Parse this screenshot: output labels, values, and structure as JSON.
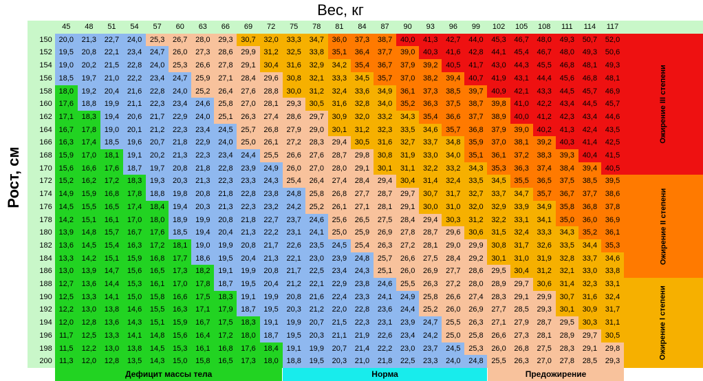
{
  "title": "Вес, кг",
  "ylabel": "Рост, см",
  "colors": {
    "header_bg": "#c9f7c9",
    "deficit": "#22d322",
    "normal": "#8fb8ef",
    "pre_obesity": "#f8c29c",
    "obesity_1": "#f6b000",
    "obesity_2": "#ff7a00",
    "obesity_3": "#ee1111",
    "footer_normal": "#18ecec"
  },
  "legend": {
    "deficit": "Дефицит массы тела",
    "normal": "Норма",
    "pre_obesity": "Предожирение",
    "obesity_1": "Ожирение I степени",
    "obesity_2": "Ожирение II степени",
    "obesity_3": "Ожирение III степени"
  },
  "chart_data": {
    "type": "heatmap",
    "title": "Вес, кг",
    "xlabel": "Вес, кг",
    "ylabel": "Рост, см",
    "x": [
      45,
      48,
      51,
      54,
      57,
      60,
      63,
      66,
      69,
      72,
      75,
      78,
      81,
      84,
      87,
      90,
      93,
      96,
      99,
      102,
      105,
      108,
      111,
      114,
      117
    ],
    "y": [
      150,
      152,
      154,
      156,
      158,
      160,
      162,
      164,
      166,
      168,
      170,
      172,
      174,
      176,
      178,
      180,
      182,
      184,
      186,
      188,
      190,
      192,
      194,
      196,
      198,
      200
    ],
    "values": [
      [
        "20,0",
        "21,3",
        "22,7",
        "24,0",
        "25,3",
        "26,7",
        "28,0",
        "29,3",
        "30,7",
        "32,0",
        "33,3",
        "34,7",
        "36,0",
        "37,3",
        "38,7",
        "40,0",
        "41,3",
        "42,7",
        "44,0",
        "45,3",
        "46,7",
        "48,0",
        "49,3",
        "50,7",
        "52,0"
      ],
      [
        "19,5",
        "20,8",
        "22,1",
        "23,4",
        "24,7",
        "26,0",
        "27,3",
        "28,6",
        "29,9",
        "31,2",
        "32,5",
        "33,8",
        "35,1",
        "36,4",
        "37,7",
        "39,0",
        "40,3",
        "41,6",
        "42,8",
        "44,1",
        "45,4",
        "46,7",
        "48,0",
        "49,3",
        "50,6"
      ],
      [
        "19,0",
        "20,2",
        "21,5",
        "22,8",
        "24,0",
        "25,3",
        "26,6",
        "27,8",
        "29,1",
        "30,4",
        "31,6",
        "32,9",
        "34,2",
        "35,4",
        "36,7",
        "37,9",
        "39,2",
        "40,5",
        "41,7",
        "43,0",
        "44,3",
        "45,5",
        "46,8",
        "48,1",
        "49,3"
      ],
      [
        "18,5",
        "19,7",
        "21,0",
        "22,2",
        "23,4",
        "24,7",
        "25,9",
        "27,1",
        "28,4",
        "29,6",
        "30,8",
        "32,1",
        "33,3",
        "34,5",
        "35,7",
        "37,0",
        "38,2",
        "39,4",
        "40,7",
        "41,9",
        "43,1",
        "44,4",
        "45,6",
        "46,8",
        "48,1"
      ],
      [
        "18,0",
        "19,2",
        "20,4",
        "21,6",
        "22,8",
        "24,0",
        "25,2",
        "26,4",
        "27,6",
        "28,8",
        "30,0",
        "31,2",
        "32,4",
        "33,6",
        "34,9",
        "36,1",
        "37,3",
        "38,5",
        "39,7",
        "40,9",
        "42,1",
        "43,3",
        "44,5",
        "45,7",
        "46,9"
      ],
      [
        "17,6",
        "18,8",
        "19,9",
        "21,1",
        "22,3",
        "23,4",
        "24,6",
        "25,8",
        "27,0",
        "28,1",
        "29,3",
        "30,5",
        "31,6",
        "32,8",
        "34,0",
        "35,2",
        "36,3",
        "37,5",
        "38,7",
        "39,8",
        "41,0",
        "42,2",
        "43,4",
        "44,5",
        "45,7"
      ],
      [
        "17,1",
        "18,3",
        "19,4",
        "20,6",
        "21,7",
        "22,9",
        "24,0",
        "25,1",
        "26,3",
        "27,4",
        "28,6",
        "29,7",
        "30,9",
        "32,0",
        "33,2",
        "34,3",
        "35,4",
        "36,6",
        "37,7",
        "38,9",
        "40,0",
        "41,2",
        "42,3",
        "43,4",
        "44,6"
      ],
      [
        "16,7",
        "17,8",
        "19,0",
        "20,1",
        "21,2",
        "22,3",
        "23,4",
        "24,5",
        "25,7",
        "26,8",
        "27,9",
        "29,0",
        "30,1",
        "31,2",
        "32,3",
        "33,5",
        "34,6",
        "35,7",
        "36,8",
        "37,9",
        "39,0",
        "40,2",
        "41,3",
        "42,4",
        "43,5"
      ],
      [
        "16,3",
        "17,4",
        "18,5",
        "19,6",
        "20,7",
        "21,8",
        "22,9",
        "24,0",
        "25,0",
        "26,1",
        "27,2",
        "28,3",
        "29,4",
        "30,5",
        "31,6",
        "32,7",
        "33,7",
        "34,8",
        "35,9",
        "37,0",
        "38,1",
        "39,2",
        "40,3",
        "41,4",
        "42,5"
      ],
      [
        "15,9",
        "17,0",
        "18,1",
        "19,1",
        "20,2",
        "21,3",
        "22,3",
        "23,4",
        "24,4",
        "25,5",
        "26,6",
        "27,6",
        "28,7",
        "29,8",
        "30,8",
        "31,9",
        "33,0",
        "34,0",
        "35,1",
        "36,1",
        "37,2",
        "38,3",
        "39,3",
        "40,4",
        "41,5"
      ],
      [
        "15,6",
        "16,6",
        "17,6",
        "18,7",
        "19,7",
        "20,8",
        "21,8",
        "22,8",
        "23,9",
        "24,9",
        "26,0",
        "27,0",
        "28,0",
        "29,1",
        "30,1",
        "31,1",
        "32,2",
        "33,2",
        "34,3",
        "35,3",
        "36,3",
        "37,4",
        "38,4",
        "39,4",
        "40,5"
      ],
      [
        "15,2",
        "16,2",
        "17,2",
        "18,3",
        "19,3",
        "20,3",
        "21,3",
        "22,3",
        "23,3",
        "24,3",
        "25,4",
        "26,4",
        "27,4",
        "28,4",
        "29,4",
        "30,4",
        "31,4",
        "32,4",
        "33,5",
        "34,5",
        "35,5",
        "36,5",
        "37,5",
        "38,5",
        "39,5"
      ],
      [
        "14,9",
        "15,9",
        "16,8",
        "17,8",
        "18,8",
        "19,8",
        "20,8",
        "21,8",
        "22,8",
        "23,8",
        "24,8",
        "25,8",
        "26,8",
        "27,7",
        "28,7",
        "29,7",
        "30,7",
        "31,7",
        "32,7",
        "33,7",
        "34,7",
        "35,7",
        "36,7",
        "37,7",
        "38,6"
      ],
      [
        "14,5",
        "15,5",
        "16,5",
        "17,4",
        "18,4",
        "19,4",
        "20,3",
        "21,3",
        "22,3",
        "23,2",
        "24,2",
        "25,2",
        "26,1",
        "27,1",
        "28,1",
        "29,1",
        "30,0",
        "31,0",
        "32,0",
        "32,9",
        "33,9",
        "34,9",
        "35,8",
        "36,8",
        "37,8"
      ],
      [
        "14,2",
        "15,1",
        "16,1",
        "17,0",
        "18,0",
        "18,9",
        "19,9",
        "20,8",
        "21,8",
        "22,7",
        "23,7",
        "24,6",
        "25,6",
        "26,5",
        "27,5",
        "28,4",
        "29,4",
        "30,3",
        "31,2",
        "32,2",
        "33,1",
        "34,1",
        "35,0",
        "36,0",
        "36,9"
      ],
      [
        "13,9",
        "14,8",
        "15,7",
        "16,7",
        "17,6",
        "18,5",
        "19,4",
        "20,4",
        "21,3",
        "22,2",
        "23,1",
        "24,1",
        "25,0",
        "25,9",
        "26,9",
        "27,8",
        "28,7",
        "29,6",
        "30,6",
        "31,5",
        "32,4",
        "33,3",
        "34,3",
        "35,2",
        "36,1"
      ],
      [
        "13,6",
        "14,5",
        "15,4",
        "16,3",
        "17,2",
        "18,1",
        "19,0",
        "19,9",
        "20,8",
        "21,7",
        "22,6",
        "23,5",
        "24,5",
        "25,4",
        "26,3",
        "27,2",
        "28,1",
        "29,0",
        "29,9",
        "30,8",
        "31,7",
        "32,6",
        "33,5",
        "34,4",
        "35,3"
      ],
      [
        "13,3",
        "14,2",
        "15,1",
        "15,9",
        "16,8",
        "17,7",
        "18,6",
        "19,5",
        "20,4",
        "21,3",
        "22,1",
        "23,0",
        "23,9",
        "24,8",
        "25,7",
        "26,6",
        "27,5",
        "28,4",
        "29,2",
        "30,1",
        "31,0",
        "31,9",
        "32,8",
        "33,7",
        "34,6"
      ],
      [
        "13,0",
        "13,9",
        "14,7",
        "15,6",
        "16,5",
        "17,3",
        "18,2",
        "19,1",
        "19,9",
        "20,8",
        "21,7",
        "22,5",
        "23,4",
        "24,3",
        "25,1",
        "26,0",
        "26,9",
        "27,7",
        "28,6",
        "29,5",
        "30,4",
        "31,2",
        "32,1",
        "33,0",
        "33,8"
      ],
      [
        "12,7",
        "13,6",
        "14,4",
        "15,3",
        "16,1",
        "17,0",
        "17,8",
        "18,7",
        "19,5",
        "20,4",
        "21,2",
        "22,1",
        "22,9",
        "23,8",
        "24,6",
        "25,5",
        "26,3",
        "27,2",
        "28,0",
        "28,9",
        "29,7",
        "30,6",
        "31,4",
        "32,3",
        "33,1"
      ],
      [
        "12,5",
        "13,3",
        "14,1",
        "15,0",
        "15,8",
        "16,6",
        "17,5",
        "18,3",
        "19,1",
        "19,9",
        "20,8",
        "21,6",
        "22,4",
        "23,3",
        "24,1",
        "24,9",
        "25,8",
        "26,6",
        "27,4",
        "28,3",
        "29,1",
        "29,9",
        "30,7",
        "31,6",
        "32,4"
      ],
      [
        "12,2",
        "13,0",
        "13,8",
        "14,6",
        "15,5",
        "16,3",
        "17,1",
        "17,9",
        "18,7",
        "19,5",
        "20,3",
        "21,2",
        "22,0",
        "22,8",
        "23,6",
        "24,4",
        "25,2",
        "26,0",
        "26,9",
        "27,7",
        "28,5",
        "29,3",
        "30,1",
        "30,9",
        "31,7"
      ],
      [
        "12,0",
        "12,8",
        "13,6",
        "14,3",
        "15,1",
        "15,9",
        "16,7",
        "17,5",
        "18,3",
        "19,1",
        "19,9",
        "20,7",
        "21,5",
        "22,3",
        "23,1",
        "23,9",
        "24,7",
        "25,5",
        "26,3",
        "27,1",
        "27,9",
        "28,7",
        "29,5",
        "30,3",
        "31,1"
      ],
      [
        "11,7",
        "12,5",
        "13,3",
        "14,1",
        "14,8",
        "15,6",
        "16,4",
        "17,2",
        "18,0",
        "18,7",
        "19,5",
        "20,3",
        "21,1",
        "21,9",
        "22,6",
        "23,4",
        "24,2",
        "25,0",
        "25,8",
        "26,6",
        "27,3",
        "28,1",
        "28,9",
        "29,7",
        "30,5"
      ],
      [
        "11,5",
        "12,2",
        "13,0",
        "13,8",
        "14,5",
        "15,3",
        "16,1",
        "16,8",
        "17,6",
        "18,4",
        "19,1",
        "19,9",
        "20,7",
        "21,4",
        "22,2",
        "23,0",
        "23,7",
        "24,5",
        "25,3",
        "26,0",
        "26,8",
        "27,5",
        "28,3",
        "29,1",
        "29,8"
      ],
      [
        "11,3",
        "12,0",
        "12,8",
        "13,5",
        "14,3",
        "15,0",
        "15,8",
        "16,5",
        "17,3",
        "18,0",
        "18,8",
        "19,5",
        "20,3",
        "21,0",
        "21,8",
        "22,5",
        "23,3",
        "24,0",
        "24,8",
        "25,5",
        "26,3",
        "27,0",
        "27,8",
        "28,5",
        "29,3"
      ]
    ],
    "thresholds": [
      18.5,
      25,
      30,
      35,
      40
    ]
  }
}
